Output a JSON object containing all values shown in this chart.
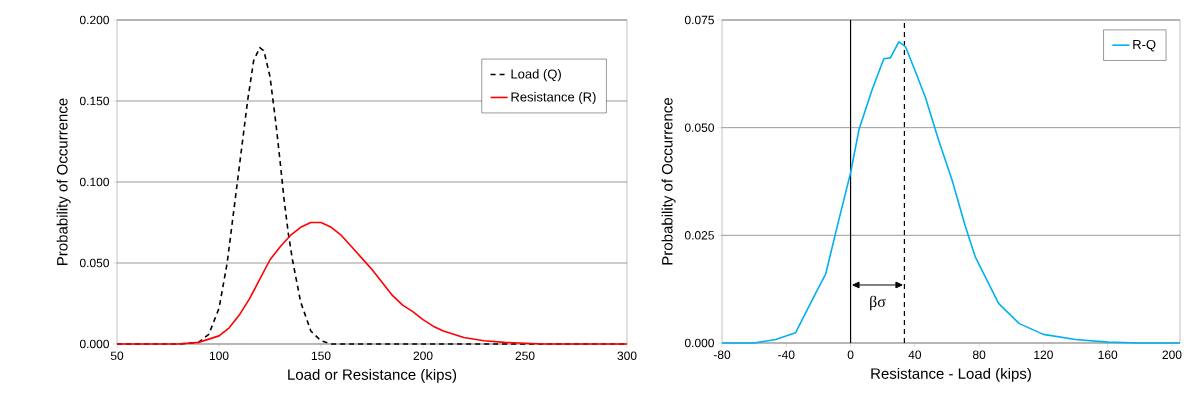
{
  "chart_data": [
    {
      "type": "line",
      "xlabel": "Load or Resistance (kips)",
      "ylabel": "Probability of Occurrence",
      "xlim": [
        50,
        300
      ],
      "xticks": [
        50,
        100,
        150,
        200,
        250,
        300
      ],
      "ylim": [
        0,
        0.2
      ],
      "yticks": [
        {
          "value": 0,
          "label": "0.000"
        },
        {
          "value": 0.05,
          "label": "0.050"
        },
        {
          "value": 0.1,
          "label": "0.100"
        },
        {
          "value": 0.15,
          "label": "0.150"
        },
        {
          "value": 0.2,
          "label": "0.200"
        }
      ],
      "grid": "y",
      "legend": "top right",
      "marker": "none",
      "series": [
        {
          "name": "Load (Q)",
          "color": "#000000",
          "line_style": "dashed",
          "x": [
            50,
            80,
            90,
            95,
            100,
            104,
            109,
            114,
            117,
            120,
            122,
            125,
            128,
            130,
            132,
            134,
            136,
            140,
            145,
            150,
            155,
            300
          ],
          "values": [
            0,
            0,
            0.001,
            0.006,
            0.022,
            0.05,
            0.1,
            0.15,
            0.175,
            0.183,
            0.181,
            0.165,
            0.135,
            0.112,
            0.088,
            0.068,
            0.052,
            0.026,
            0.008,
            0.002,
            0,
            0
          ]
        },
        {
          "name": "Resistance (R)",
          "color": "#ff0000",
          "line_style": "solid",
          "x": [
            50,
            80,
            90,
            100,
            105,
            110,
            115,
            120,
            125,
            130,
            135,
            140,
            145,
            150,
            155,
            160,
            165,
            170,
            175,
            180,
            185,
            190,
            195,
            200,
            205,
            210,
            220,
            230,
            240,
            250,
            260,
            300
          ],
          "values": [
            0,
            0,
            0.001,
            0.005,
            0.01,
            0.018,
            0.028,
            0.04,
            0.052,
            0.06,
            0.067,
            0.072,
            0.075,
            0.075,
            0.072,
            0.067,
            0.06,
            0.053,
            0.046,
            0.038,
            0.03,
            0.024,
            0.02,
            0.015,
            0.011,
            0.008,
            0.004,
            0.002,
            0.001,
            0.0005,
            0,
            0
          ]
        }
      ]
    },
    {
      "type": "line",
      "xlabel": "Resistance - Load (kips)",
      "ylabel": "Probability of Occurrence",
      "xlim": [
        -80,
        205
      ],
      "xticks": [
        -80,
        -40,
        0,
        40,
        80,
        120,
        160,
        200
      ],
      "ylim": [
        0,
        0.075
      ],
      "yticks": [
        {
          "value": 0,
          "label": "0.000"
        },
        {
          "value": 0.025,
          "label": "0.025"
        },
        {
          "value": 0.05,
          "label": "0.050"
        },
        {
          "value": 0.075,
          "label": "0.075"
        }
      ],
      "grid": "y",
      "legend": "top right",
      "marker": "none",
      "series": [
        {
          "name": "R-Q",
          "color": "#00b0f0",
          "line_style": "solid",
          "x": [
            -80,
            -60,
            -46.6,
            -34.2,
            -21.7,
            -15.5,
            -7.3,
            0,
            5.2,
            13.4,
            20.7,
            24.8,
            30,
            34.2,
            40.4,
            46.6,
            54.8,
            63.1,
            71.4,
            77.6,
            92.1,
            105,
            120,
            140,
            160,
            180,
            205
          ],
          "values": [
            0,
            0,
            0.0008,
            0.0024,
            0.0116,
            0.016,
            0.0286,
            0.0395,
            0.0495,
            0.0588,
            0.066,
            0.0662,
            0.0699,
            0.0688,
            0.063,
            0.057,
            0.0471,
            0.0379,
            0.0271,
            0.02,
            0.0092,
            0.0045,
            0.002,
            0.0008,
            0.0002,
            0,
            0
          ]
        }
      ],
      "ref_lines": [
        {
          "axis": "x",
          "value": 0,
          "color": "#000000",
          "line_style": "solid"
        },
        {
          "axis": "x",
          "value": 33.5,
          "color": "#000000",
          "line_style": "dashed"
        }
      ],
      "annotations": [
        "βσ"
      ]
    }
  ]
}
